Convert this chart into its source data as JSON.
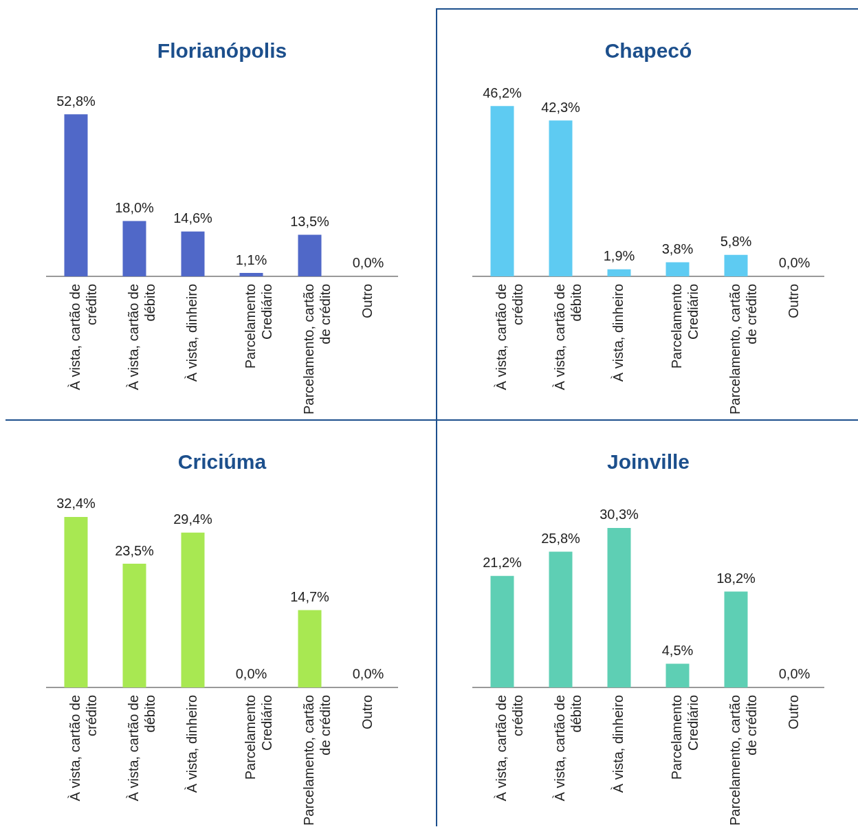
{
  "chart_data": [
    {
      "type": "bar",
      "title": "Florianópolis",
      "categories": [
        "À vista, cartão de crédito",
        "À vista, cartão de débito",
        "À vista, dinheiro",
        "Parcelamento Crediário",
        "Parcelamento, cartão de crédito",
        "Outro"
      ],
      "values": [
        52.8,
        18.0,
        14.6,
        1.1,
        13.5,
        0.0
      ],
      "value_labels": [
        "52,8%",
        "18,0%",
        "14,6%",
        "1,1%",
        "13,5%",
        "0,0%"
      ],
      "color": "#5068c8"
    },
    {
      "type": "bar",
      "title": "Chapecó",
      "categories": [
        "À vista, cartão de crédito",
        "À vista, cartão de débito",
        "À vista, dinheiro",
        "Parcelamento Crediário",
        "Parcelamento, cartão de crédito",
        "Outro"
      ],
      "values": [
        46.2,
        42.3,
        1.9,
        3.8,
        5.8,
        0.0
      ],
      "value_labels": [
        "46,2%",
        "42,3%",
        "1,9%",
        "3,8%",
        "5,8%",
        "0,0%"
      ],
      "color": "#5ecbf2"
    },
    {
      "type": "bar",
      "title": "Criciúma",
      "categories": [
        "À vista, cartão de crédito",
        "À vista, cartão de débito",
        "À vista, dinheiro",
        "Parcelamento Crediário",
        "Parcelamento, cartão de crédito",
        "Outro"
      ],
      "values": [
        32.4,
        23.5,
        29.4,
        0.0,
        14.7,
        0.0
      ],
      "value_labels": [
        "32,4%",
        "23,5%",
        "29,4%",
        "0,0%",
        "14,7%",
        "0,0%"
      ],
      "color": "#a8e852"
    },
    {
      "type": "bar",
      "title": "Joinville",
      "categories": [
        "À vista, cartão de crédito",
        "À vista, cartão de débito",
        "À vista, dinheiro",
        "Parcelamento Crediário",
        "Parcelamento, cartão de crédito",
        "Outro"
      ],
      "values": [
        21.2,
        25.8,
        30.3,
        4.5,
        18.2,
        0.0
      ],
      "value_labels": [
        "21,2%",
        "25,8%",
        "30,3%",
        "4,5%",
        "18,2%",
        "0,0%"
      ],
      "color": "#5ecfb4"
    }
  ]
}
